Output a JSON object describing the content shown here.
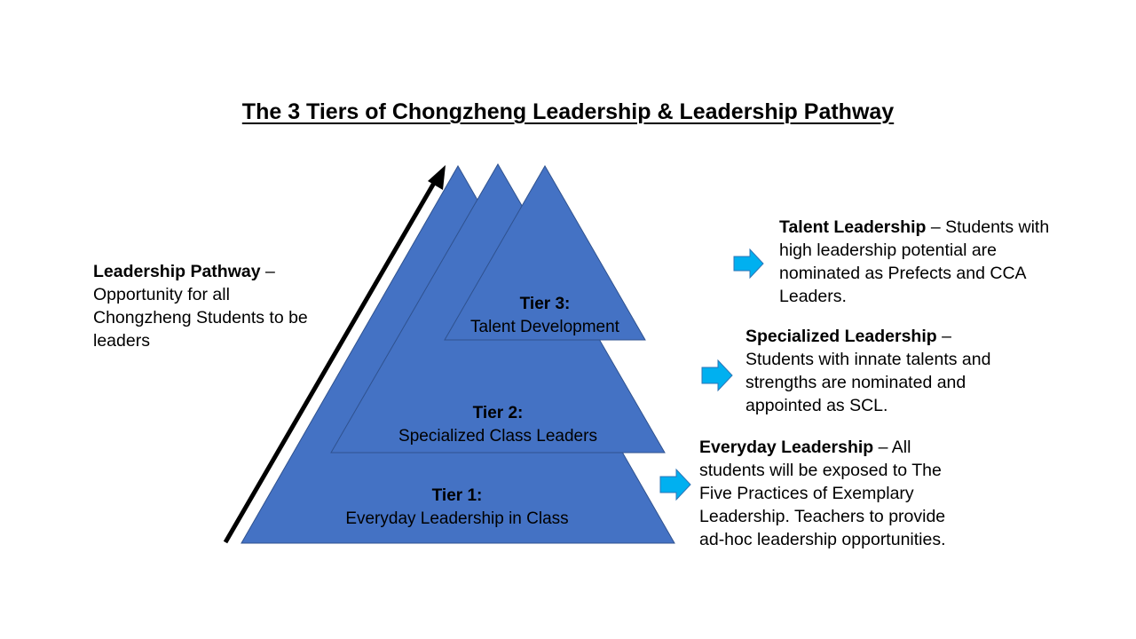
{
  "title": "The 3 Tiers of Chongzheng Leadership & Leadership Pathway",
  "colors": {
    "triangle_fill": "#4472C4",
    "triangle_stroke": "#2F528F",
    "arrow_fill": "#00B0F0",
    "pathway_arrow": "#000000"
  },
  "pathway": {
    "heading": "Leadership Pathway",
    "dash": " –",
    "line1": "Opportunity for all",
    "line2": "Chongzheng Students to be",
    "line3": "leaders"
  },
  "tiers": {
    "tier1": {
      "number": "Tier 1:",
      "name": "Everyday Leadership in Class"
    },
    "tier2": {
      "number": "Tier 2:",
      "name": "Specialized Class Leaders"
    },
    "tier3": {
      "number": "Tier 3:",
      "name": "Talent Development"
    }
  },
  "descriptions": {
    "talent": {
      "heading": "Talent Leadership",
      "line1_rest": " – Students with",
      "line2": "high leadership potential are",
      "line3": "nominated as Prefects and CCA",
      "line4": "Leaders."
    },
    "specialized": {
      "heading": "Specialized Leadership",
      "line1_rest": " –",
      "line2": "Students with innate talents and",
      "line3": "strengths are nominated and",
      "line4": "appointed as SCL."
    },
    "everyday": {
      "heading": "Everyday Leadership",
      "line1_rest": " – All",
      "line2": "students will be exposed to The",
      "line3": "Five Practices of Exemplary",
      "line4": "Leadership. Teachers to provide",
      "line5": "ad-hoc leadership opportunities."
    }
  }
}
